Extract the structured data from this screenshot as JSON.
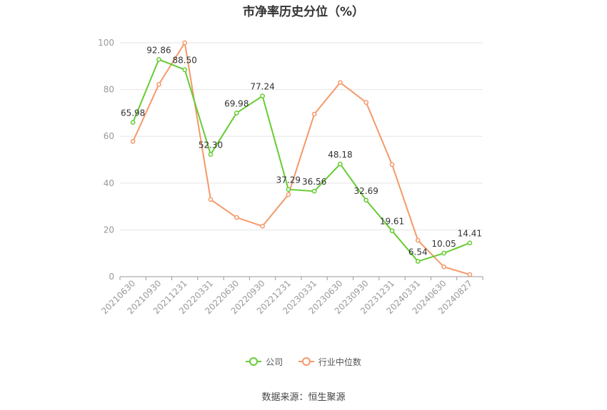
{
  "chart_data": {
    "type": "line",
    "title": "市净率历史分位（%）",
    "categories": [
      "20210630",
      "20210930",
      "20211231",
      "20220331",
      "20220630",
      "20220930",
      "20221231",
      "20230331",
      "20230630",
      "20230930",
      "20231231",
      "20240331",
      "20240630",
      "20240827"
    ],
    "series": [
      {
        "name": "公司",
        "color": "#66cc33",
        "values": [
          65.98,
          92.86,
          88.5,
          52.3,
          69.98,
          77.24,
          37.29,
          36.56,
          48.18,
          32.69,
          19.61,
          6.54,
          10.05,
          14.41
        ],
        "labels": [
          "65.98",
          "92.86",
          "88.50",
          "52.30",
          "69.98",
          "77.24",
          "37.29",
          "36.56",
          "48.18",
          "32.69",
          "19.61",
          "6.54",
          "10.05",
          "14.41"
        ]
      },
      {
        "name": "行业中位数",
        "color": "#f4996a",
        "values": [
          57.8,
          82.2,
          100.0,
          33.0,
          25.3,
          21.6,
          35.1,
          69.5,
          83.0,
          74.5,
          47.9,
          15.5,
          4.2,
          0.9
        ]
      }
    ],
    "yticks": [
      "0",
      "20",
      "40",
      "60",
      "80",
      "100"
    ],
    "ylim": [
      0,
      100
    ],
    "grid": true,
    "legend_position": "bottom"
  },
  "source_note": "数据来源：恒生聚源"
}
